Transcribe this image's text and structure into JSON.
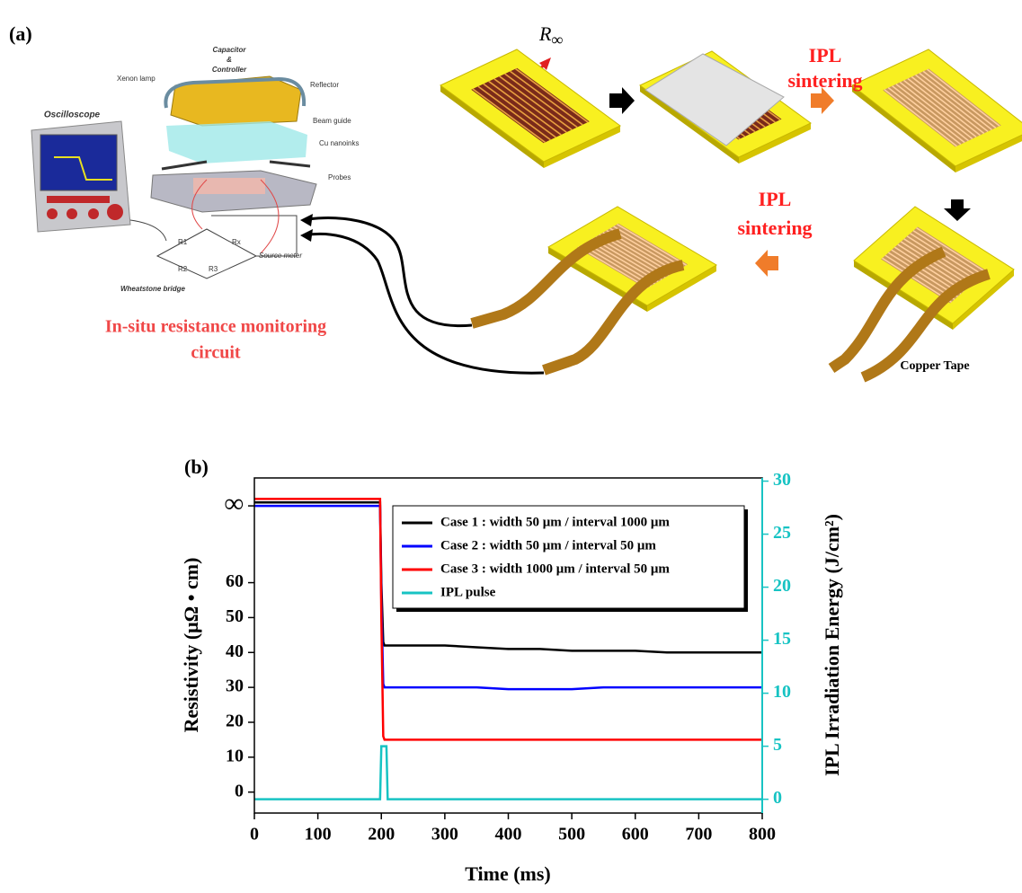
{
  "panel_a": {
    "label": "(a)",
    "r_symbol": "R",
    "r_subscript": "∞",
    "ipl_top": [
      "IPL",
      "sintering"
    ],
    "ipl_bottom": [
      "IPL",
      "sintering"
    ],
    "capacitor": [
      "Capacitor",
      "&",
      "Controller"
    ],
    "xenon_lamp": "Xenon lamp",
    "reflector": "Reflector",
    "beam_guide": "Beam guide",
    "cu_nanoinks": "Cu nanoinks",
    "probes": "Probes",
    "oscilloscope": "Oscilloscope",
    "r1": "R1",
    "rx": "Rx",
    "r2": "R2",
    "r3": "R3",
    "source_meter": "Source meter",
    "wheatstone": "Wheatstone bridge",
    "monitoring": [
      "In-situ resistance monitoring",
      "circuit"
    ],
    "copper_tape": "Copper Tape"
  },
  "chart_data": {
    "type": "line",
    "label": "(b)",
    "x_label": "Time (ms)",
    "y_label": "Resistivity (μΩ • cm)",
    "y2_label": "IPL Irradiation Energy (J/cm²)",
    "x": [
      0,
      50,
      100,
      150,
      198,
      200,
      203,
      205,
      208,
      210,
      250,
      300,
      350,
      400,
      450,
      500,
      550,
      600,
      650,
      700,
      750,
      800
    ],
    "series": [
      {
        "name": "Case 1 : width 50 μm / interval 1000 μm",
        "color": "#000000",
        "values": [
          83,
          83,
          83,
          83,
          83,
          60,
          43,
          42,
          42,
          42,
          42,
          42,
          41.5,
          41,
          41,
          40.5,
          40.5,
          40.5,
          40,
          40,
          40,
          40
        ]
      },
      {
        "name": "Case 2 : width 50 μm / interval 50 μm",
        "color": "#0000ff",
        "values": [
          82,
          82,
          82,
          82,
          82,
          55,
          31,
          30,
          30,
          30,
          30,
          30,
          30,
          29.5,
          29.5,
          29.5,
          30,
          30,
          30,
          30,
          30,
          30
        ]
      },
      {
        "name": "Case 3 : width 1000 μm / interval 50 μm",
        "color": "#ff0000",
        "values": [
          84,
          84,
          84,
          84,
          84,
          50,
          16,
          15,
          15,
          15,
          15,
          15,
          15,
          15,
          15,
          15,
          15,
          15,
          15,
          15,
          15,
          15
        ]
      },
      {
        "name": "IPL pulse",
        "color": "#17c3c3",
        "axis": "y2",
        "values": [
          0,
          0,
          0,
          0,
          0,
          5,
          5,
          5,
          5,
          0,
          0,
          0,
          0,
          0,
          0,
          0,
          0,
          0,
          0,
          0,
          0,
          0
        ]
      }
    ],
    "xlim": [
      0,
      800
    ],
    "xticks": [
      0,
      100,
      200,
      300,
      400,
      500,
      600,
      700,
      800
    ],
    "ylim": [
      -6,
      90
    ],
    "yticks": [
      0,
      10,
      20,
      30,
      40,
      50,
      60,
      {
        "value": 82,
        "label": "∞"
      }
    ],
    "y2lim": [
      -1.3,
      30.3
    ],
    "y2ticks": [
      0,
      5,
      10,
      15,
      20,
      25,
      30
    ],
    "y2_color": "#17c3c3",
    "legend": "upper right"
  }
}
